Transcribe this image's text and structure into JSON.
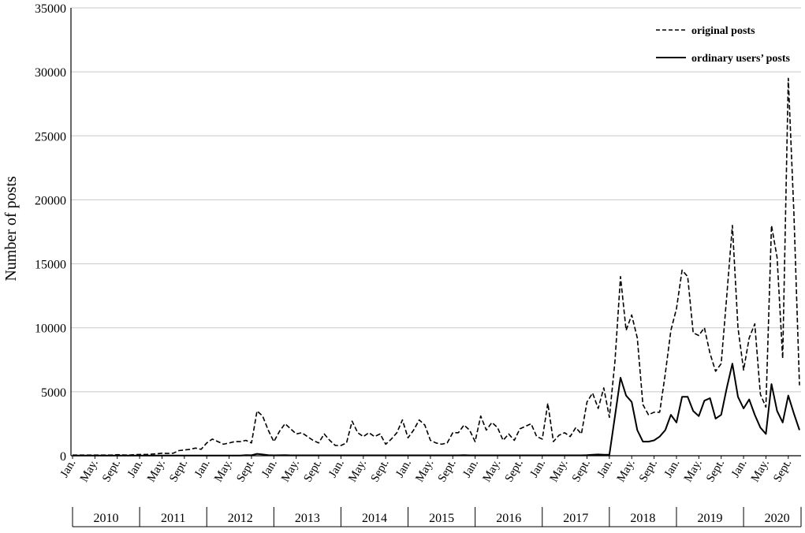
{
  "chart_data": {
    "type": "line",
    "ylabel": "Number of posts",
    "ylim": [
      0,
      35000
    ],
    "yticks": [
      "0",
      "5000",
      "10000",
      "15000",
      "20000",
      "25000",
      "30000",
      "35000"
    ],
    "grid": "horizontal",
    "legend_position": "top-right",
    "month_labels": [
      "Jan.",
      "May.",
      "Sept."
    ],
    "years": [
      "2010",
      "2011",
      "2012",
      "2013",
      "2014",
      "2015",
      "2016",
      "2017",
      "2018",
      "2019",
      "2020"
    ],
    "series": [
      {
        "name": "original posts",
        "style": "dashed",
        "values": [
          50,
          50,
          50,
          50,
          50,
          50,
          50,
          50,
          80,
          60,
          50,
          80,
          100,
          100,
          120,
          150,
          200,
          180,
          200,
          400,
          450,
          500,
          600,
          500,
          1000,
          1300,
          1100,
          900,
          1000,
          1100,
          1100,
          1200,
          1000,
          3500,
          3100,
          2000,
          1100,
          1900,
          2500,
          2100,
          1700,
          1800,
          1500,
          1200,
          1000,
          1700,
          1200,
          800,
          800,
          1000,
          2700,
          1800,
          1500,
          1800,
          1500,
          1700,
          900,
          1300,
          1800,
          2800,
          1400,
          2000,
          2800,
          2400,
          1200,
          1000,
          900,
          1000,
          1800,
          1800,
          2400,
          2000,
          1100,
          3100,
          2000,
          2600,
          2200,
          1200,
          1700,
          1200,
          2100,
          2300,
          2500,
          1500,
          1300,
          4100,
          1100,
          1600,
          1800,
          1500,
          2200,
          1700,
          4200,
          4900,
          3700,
          5300,
          3000,
          7400,
          14000,
          9800,
          11000,
          9200,
          4000,
          3200,
          3400,
          3400,
          6400,
          9800,
          11500,
          14500,
          14000,
          9600,
          9400,
          10000,
          8000,
          6600,
          7200,
          12500,
          18000,
          10000,
          6700,
          9200,
          10300,
          4800,
          3800,
          18000,
          15500,
          7600,
          29500,
          19000,
          5500
        ]
      },
      {
        "name": "ordinary users’ posts",
        "style": "solid",
        "values": [
          20,
          20,
          20,
          20,
          20,
          20,
          20,
          20,
          20,
          20,
          20,
          20,
          20,
          20,
          20,
          20,
          20,
          20,
          20,
          20,
          20,
          20,
          20,
          20,
          20,
          20,
          20,
          20,
          20,
          20,
          20,
          50,
          40,
          150,
          100,
          50,
          30,
          40,
          50,
          30,
          30,
          30,
          30,
          30,
          30,
          30,
          30,
          30,
          30,
          30,
          30,
          30,
          30,
          30,
          30,
          30,
          30,
          30,
          30,
          30,
          30,
          30,
          30,
          30,
          30,
          30,
          30,
          30,
          30,
          30,
          50,
          30,
          30,
          30,
          30,
          30,
          30,
          30,
          30,
          30,
          30,
          30,
          30,
          30,
          30,
          30,
          30,
          30,
          30,
          30,
          30,
          30,
          50,
          80,
          100,
          80,
          80,
          3100,
          6100,
          4700,
          4200,
          2000,
          1100,
          1100,
          1200,
          1500,
          2000,
          3200,
          2600,
          4600,
          4600,
          3500,
          3100,
          4300,
          4500,
          2900,
          3200,
          5300,
          7200,
          4600,
          3700,
          4400,
          3200,
          2200,
          1700,
          5600,
          3500,
          2600,
          4700,
          3300,
          2000
        ]
      }
    ]
  }
}
